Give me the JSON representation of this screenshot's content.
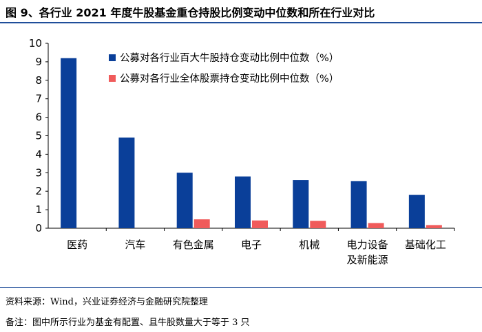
{
  "figure": {
    "title": "图 9、各行业 2021 年度牛股基金重仓持股比例变动中位数和所在行业对比",
    "source": "资料来源：Wind，兴业证券经济与金融研究院整理",
    "note": "备注：图中所示行业为基金有配置、且牛股数量大于等于 3 只"
  },
  "chart_data": {
    "type": "bar",
    "title": "",
    "xlabel": "",
    "ylabel": "",
    "ylim": [
      0,
      10
    ],
    "yticks": [
      0,
      1,
      2,
      3,
      4,
      5,
      6,
      7,
      8,
      9,
      10
    ],
    "grid": false,
    "legend_position": "top-right",
    "categories": [
      [
        "医药"
      ],
      [
        "汽车"
      ],
      [
        "有色金属"
      ],
      [
        "电子"
      ],
      [
        "机械"
      ],
      [
        "电力设备",
        "及新能源"
      ],
      [
        "基础化工"
      ]
    ],
    "series": [
      {
        "name": "公募对各行业百大牛股持仓变动比例中位数（%）",
        "color": "#0a3f99",
        "values": [
          9.2,
          4.9,
          3.0,
          2.8,
          2.6,
          2.55,
          1.8
        ]
      },
      {
        "name": "公募对各行业全体股票持仓变动比例中位数（%）",
        "color": "#f05b5b",
        "values": [
          0,
          0,
          0.48,
          0.42,
          0.4,
          0.28,
          0.17
        ]
      }
    ]
  }
}
